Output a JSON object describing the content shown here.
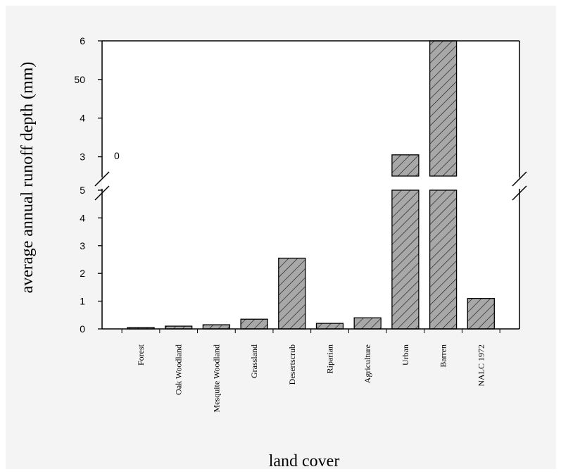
{
  "chart_data": {
    "type": "bar",
    "xlabel": "land cover",
    "ylabel": "average annual runoff depth (mm)",
    "categories": [
      "Forest",
      "Oak Woodland",
      "Mesquite Woodland",
      "Grassland",
      "Desertscrub",
      "Riparian",
      "Agriculture",
      "Urban",
      "Barren",
      "NALC 1972"
    ],
    "values": [
      0.05,
      0.1,
      0.15,
      0.35,
      2.55,
      0.2,
      0.4,
      30.5,
      60,
      1.1
    ],
    "axis_break": true,
    "lower_segment": {
      "ylim": [
        0,
        5
      ],
      "tick_labels": [
        "0",
        "1",
        "2",
        "3",
        "4",
        "5"
      ]
    },
    "upper_segment": {
      "ylim": [
        25,
        60
      ],
      "tick_labels": [
        "3",
        "4",
        "50",
        "6"
      ],
      "tick_values": [
        30,
        40,
        50,
        60
      ],
      "annotation": "0"
    },
    "bar_pattern": "diagonal-hatch",
    "bar_color": "#a8a8a8",
    "grid": false,
    "legend": "none"
  }
}
